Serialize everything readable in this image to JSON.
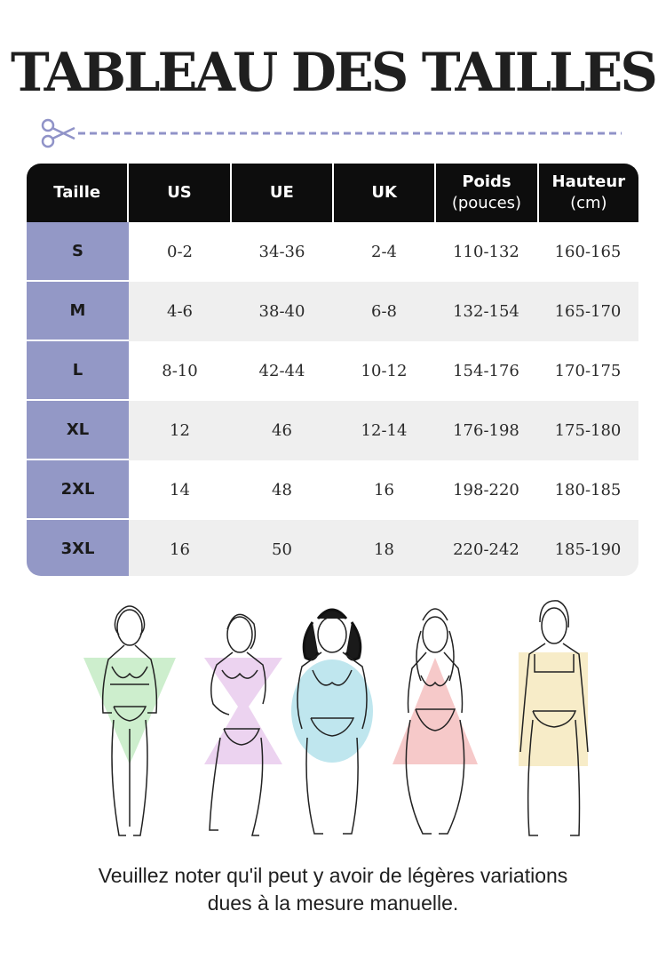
{
  "title": "TABLEAU DES TAILLES",
  "table": {
    "headers": [
      {
        "label": "Taille",
        "sub": ""
      },
      {
        "label": "US",
        "sub": ""
      },
      {
        "label": "UE",
        "sub": ""
      },
      {
        "label": "UK",
        "sub": ""
      },
      {
        "label": "Poids",
        "sub": "(pouces)"
      },
      {
        "label": "Hauteur",
        "sub": "(cm)"
      }
    ],
    "rows": [
      {
        "size": "S",
        "us": "0-2",
        "ue": "34-36",
        "uk": "2-4",
        "poids": "110-132",
        "hauteur": "160-165"
      },
      {
        "size": "M",
        "us": "4-6",
        "ue": "38-40",
        "uk": "6-8",
        "poids": "132-154",
        "hauteur": "165-170"
      },
      {
        "size": "L",
        "us": "8-10",
        "ue": "42-44",
        "uk": "10-12",
        "poids": "154-176",
        "hauteur": "170-175"
      },
      {
        "size": "XL",
        "us": "12",
        "ue": "46",
        "uk": "12-14",
        "poids": "176-198",
        "hauteur": "175-180"
      },
      {
        "size": "2XL",
        "us": "14",
        "ue": "48",
        "uk": "16",
        "poids": "198-220",
        "hauteur": "180-185"
      },
      {
        "size": "3XL",
        "us": "16",
        "ue": "50",
        "uk": "18",
        "poids": "220-242",
        "hauteur": "185-190"
      }
    ]
  },
  "body_shapes": [
    {
      "shape": "inverted-triangle",
      "color": "#cdeecd"
    },
    {
      "shape": "hourglass",
      "color": "#ecd3f0"
    },
    {
      "shape": "oval",
      "color": "#bfe6ee"
    },
    {
      "shape": "triangle",
      "color": "#f6c9c9"
    },
    {
      "shape": "rectangle",
      "color": "#f7ecc8"
    }
  ],
  "note": {
    "line1": "Veuillez noter qu'il peut y avoir de légères variations",
    "line2": "dues à la mesure manuelle."
  },
  "colors": {
    "header_bg": "#0d0d0d",
    "size_col": "#9398c6",
    "alt_row": "#efefef",
    "cutline": "#9093c8"
  }
}
